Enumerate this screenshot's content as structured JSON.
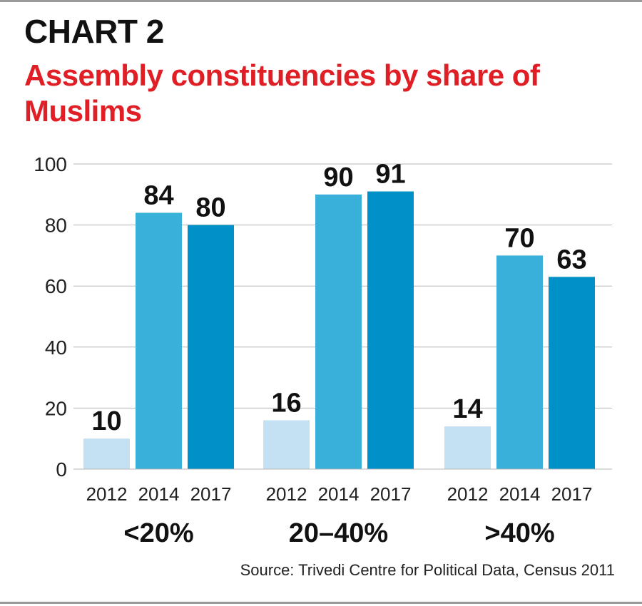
{
  "header": {
    "chart_label": "CHART 2",
    "title": "Assembly constituencies by share of Muslims"
  },
  "source": "Source: Trivedi Centre for Political Data, Census 2011",
  "colors": {
    "2012": "#c3e1f3",
    "2014": "#38b0d9",
    "2017": "#0091c8",
    "title": "#e01e25",
    "grid": "#b5b5b5"
  },
  "chart_data": {
    "type": "bar",
    "title": "Assembly constituencies by share of Muslims",
    "groups": [
      "<20%",
      "20–40%",
      ">40%"
    ],
    "series": [
      {
        "name": "2012",
        "values": [
          10,
          16,
          14
        ]
      },
      {
        "name": "2014",
        "values": [
          84,
          90,
          70
        ]
      },
      {
        "name": "2017",
        "values": [
          80,
          91,
          63
        ]
      }
    ],
    "ylim": [
      0,
      100
    ],
    "yticks": [
      0,
      20,
      40,
      60,
      80,
      100
    ],
    "grid": true,
    "legend": "none"
  }
}
